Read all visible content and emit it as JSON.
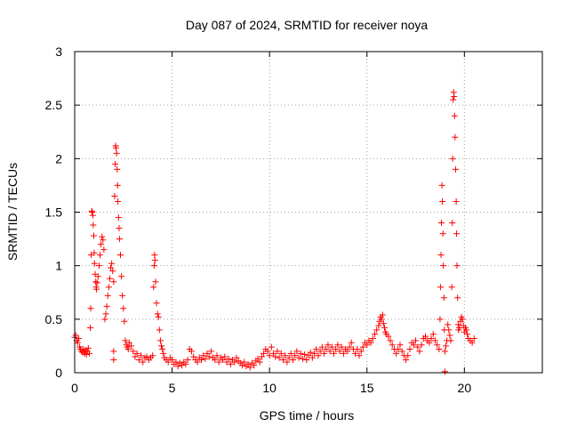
{
  "chart_data": {
    "type": "scatter",
    "title": "Day 087 of 2024, SRMTID for receiver noya",
    "xlabel": "GPS time / hours",
    "ylabel": "SRMTID / TECUs",
    "xlim": [
      0,
      24
    ],
    "ylim": [
      0,
      3
    ],
    "xticks": [
      0,
      5,
      10,
      15,
      20
    ],
    "xtick_labels": [
      "0",
      "5",
      "10",
      "15",
      "20"
    ],
    "yticks": [
      0,
      0.5,
      1,
      1.5,
      2,
      2.5,
      3
    ],
    "ytick_labels": [
      "0",
      "0.5",
      "1",
      "1.5",
      "2",
      "2.5",
      "3"
    ],
    "grid": true,
    "marker": "+",
    "color": "#ff0000",
    "series": [
      {
        "name": "SRMTID",
        "points": [
          [
            0.0,
            0.33
          ],
          [
            0.05,
            0.35
          ],
          [
            0.1,
            0.3
          ],
          [
            0.15,
            0.28
          ],
          [
            0.2,
            0.32
          ],
          [
            0.25,
            0.24
          ],
          [
            0.3,
            0.22
          ],
          [
            0.35,
            0.2
          ],
          [
            0.4,
            0.19
          ],
          [
            0.45,
            0.22
          ],
          [
            0.5,
            0.18
          ],
          [
            0.55,
            0.21
          ],
          [
            0.6,
            0.17
          ],
          [
            0.65,
            0.2
          ],
          [
            0.7,
            0.23
          ],
          [
            0.75,
            0.18
          ],
          [
            0.8,
            0.42
          ],
          [
            0.82,
            0.6
          ],
          [
            0.85,
            1.1
          ],
          [
            0.88,
            1.51
          ],
          [
            0.9,
            1.5
          ],
          [
            0.93,
            1.47
          ],
          [
            0.95,
            1.38
          ],
          [
            0.98,
            1.28
          ],
          [
            1.0,
            1.12
          ],
          [
            1.02,
            1.02
          ],
          [
            1.05,
            0.92
          ],
          [
            1.08,
            0.85
          ],
          [
            1.1,
            0.8
          ],
          [
            1.12,
            0.78
          ],
          [
            1.15,
            0.84
          ],
          [
            1.2,
            0.9
          ],
          [
            1.25,
            1.0
          ],
          [
            1.3,
            1.1
          ],
          [
            1.35,
            1.2
          ],
          [
            1.4,
            1.27
          ],
          [
            1.45,
            1.24
          ],
          [
            1.5,
            1.15
          ],
          [
            1.55,
            0.5
          ],
          [
            1.6,
            0.55
          ],
          [
            1.65,
            0.62
          ],
          [
            1.7,
            0.72
          ],
          [
            1.75,
            0.8
          ],
          [
            1.8,
            0.88
          ],
          [
            1.85,
            0.98
          ],
          [
            1.9,
            1.02
          ],
          [
            1.95,
            0.95
          ],
          [
            2.0,
            0.85
          ],
          [
            2.0,
            0.12
          ],
          [
            2.0,
            0.2
          ],
          [
            2.05,
            1.65
          ],
          [
            2.08,
            1.95
          ],
          [
            2.1,
            2.12
          ],
          [
            2.12,
            2.1
          ],
          [
            2.15,
            2.05
          ],
          [
            2.18,
            1.9
          ],
          [
            2.2,
            1.75
          ],
          [
            2.22,
            1.6
          ],
          [
            2.25,
            1.45
          ],
          [
            2.28,
            1.35
          ],
          [
            2.3,
            1.25
          ],
          [
            2.35,
            1.1
          ],
          [
            2.4,
            0.9
          ],
          [
            2.45,
            0.72
          ],
          [
            2.5,
            0.6
          ],
          [
            2.55,
            0.48
          ],
          [
            2.6,
            0.3
          ],
          [
            2.65,
            0.26
          ],
          [
            2.7,
            0.24
          ],
          [
            2.75,
            0.22
          ],
          [
            2.8,
            0.28
          ],
          [
            2.9,
            0.25
          ],
          [
            3.0,
            0.2
          ],
          [
            3.1,
            0.15
          ],
          [
            3.2,
            0.18
          ],
          [
            3.3,
            0.12
          ],
          [
            3.4,
            0.16
          ],
          [
            3.5,
            0.1
          ],
          [
            3.6,
            0.14
          ],
          [
            3.7,
            0.15
          ],
          [
            3.8,
            0.12
          ],
          [
            3.9,
            0.14
          ],
          [
            4.0,
            0.16
          ],
          [
            4.05,
            0.8
          ],
          [
            4.08,
            1.0
          ],
          [
            4.1,
            1.1
          ],
          [
            4.12,
            1.05
          ],
          [
            4.15,
            0.85
          ],
          [
            4.2,
            0.65
          ],
          [
            4.25,
            0.55
          ],
          [
            4.3,
            0.52
          ],
          [
            4.35,
            0.4
          ],
          [
            4.4,
            0.3
          ],
          [
            4.45,
            0.25
          ],
          [
            4.5,
            0.22
          ],
          [
            4.55,
            0.18
          ],
          [
            4.6,
            0.14
          ],
          [
            4.7,
            0.12
          ],
          [
            4.8,
            0.1
          ],
          [
            4.9,
            0.14
          ],
          [
            5.0,
            0.12
          ],
          [
            5.1,
            0.08
          ],
          [
            5.2,
            0.1
          ],
          [
            5.3,
            0.06
          ],
          [
            5.4,
            0.09
          ],
          [
            5.5,
            0.07
          ],
          [
            5.6,
            0.1
          ],
          [
            5.7,
            0.08
          ],
          [
            5.8,
            0.12
          ],
          [
            5.9,
            0.22
          ],
          [
            6.0,
            0.2
          ],
          [
            6.1,
            0.15
          ],
          [
            6.2,
            0.12
          ],
          [
            6.3,
            0.1
          ],
          [
            6.4,
            0.14
          ],
          [
            6.5,
            0.12
          ],
          [
            6.6,
            0.16
          ],
          [
            6.7,
            0.13
          ],
          [
            6.8,
            0.18
          ],
          [
            6.9,
            0.15
          ],
          [
            7.0,
            0.2
          ],
          [
            7.1,
            0.14
          ],
          [
            7.2,
            0.12
          ],
          [
            7.3,
            0.16
          ],
          [
            7.4,
            0.1
          ],
          [
            7.5,
            0.14
          ],
          [
            7.6,
            0.12
          ],
          [
            7.7,
            0.15
          ],
          [
            7.8,
            0.1
          ],
          [
            7.9,
            0.13
          ],
          [
            8.0,
            0.08
          ],
          [
            8.1,
            0.12
          ],
          [
            8.2,
            0.1
          ],
          [
            8.3,
            0.14
          ],
          [
            8.4,
            0.11
          ],
          [
            8.5,
            0.09
          ],
          [
            8.6,
            0.07
          ],
          [
            8.7,
            0.1
          ],
          [
            8.8,
            0.06
          ],
          [
            8.9,
            0.08
          ],
          [
            9.0,
            0.05
          ],
          [
            9.1,
            0.09
          ],
          [
            9.2,
            0.07
          ],
          [
            9.3,
            0.11
          ],
          [
            9.4,
            0.13
          ],
          [
            9.5,
            0.1
          ],
          [
            9.6,
            0.15
          ],
          [
            9.7,
            0.18
          ],
          [
            9.8,
            0.22
          ],
          [
            9.9,
            0.2
          ],
          [
            10.0,
            0.16
          ],
          [
            10.1,
            0.24
          ],
          [
            10.2,
            0.18
          ],
          [
            10.3,
            0.15
          ],
          [
            10.4,
            0.2
          ],
          [
            10.5,
            0.14
          ],
          [
            10.6,
            0.18
          ],
          [
            10.7,
            0.12
          ],
          [
            10.8,
            0.16
          ],
          [
            10.9,
            0.1
          ],
          [
            11.0,
            0.14
          ],
          [
            11.1,
            0.18
          ],
          [
            11.2,
            0.12
          ],
          [
            11.3,
            0.16
          ],
          [
            11.4,
            0.2
          ],
          [
            11.5,
            0.14
          ],
          [
            11.6,
            0.18
          ],
          [
            11.7,
            0.13
          ],
          [
            11.8,
            0.17
          ],
          [
            11.9,
            0.12
          ],
          [
            12.0,
            0.16
          ],
          [
            12.1,
            0.19
          ],
          [
            12.2,
            0.14
          ],
          [
            12.3,
            0.18
          ],
          [
            12.4,
            0.22
          ],
          [
            12.5,
            0.16
          ],
          [
            12.6,
            0.2
          ],
          [
            12.7,
            0.24
          ],
          [
            12.8,
            0.18
          ],
          [
            12.9,
            0.22
          ],
          [
            13.0,
            0.26
          ],
          [
            13.1,
            0.2
          ],
          [
            13.2,
            0.24
          ],
          [
            13.3,
            0.18
          ],
          [
            13.4,
            0.22
          ],
          [
            13.5,
            0.26
          ],
          [
            13.6,
            0.2
          ],
          [
            13.7,
            0.24
          ],
          [
            13.8,
            0.18
          ],
          [
            13.9,
            0.22
          ],
          [
            14.0,
            0.2
          ],
          [
            14.1,
            0.24
          ],
          [
            14.2,
            0.28
          ],
          [
            14.3,
            0.22
          ],
          [
            14.4,
            0.18
          ],
          [
            14.5,
            0.22
          ],
          [
            14.6,
            0.16
          ],
          [
            14.7,
            0.2
          ],
          [
            14.8,
            0.24
          ],
          [
            14.9,
            0.28
          ],
          [
            15.0,
            0.26
          ],
          [
            15.1,
            0.3
          ],
          [
            15.2,
            0.28
          ],
          [
            15.3,
            0.32
          ],
          [
            15.4,
            0.36
          ],
          [
            15.5,
            0.4
          ],
          [
            15.6,
            0.44
          ],
          [
            15.65,
            0.48
          ],
          [
            15.7,
            0.52
          ],
          [
            15.75,
            0.5
          ],
          [
            15.8,
            0.54
          ],
          [
            15.85,
            0.46
          ],
          [
            15.9,
            0.42
          ],
          [
            15.95,
            0.38
          ],
          [
            16.0,
            0.36
          ],
          [
            16.1,
            0.34
          ],
          [
            16.2,
            0.3
          ],
          [
            16.3,
            0.26
          ],
          [
            16.4,
            0.22
          ],
          [
            16.5,
            0.18
          ],
          [
            16.6,
            0.22
          ],
          [
            16.7,
            0.26
          ],
          [
            16.8,
            0.2
          ],
          [
            16.9,
            0.16
          ],
          [
            17.0,
            0.12
          ],
          [
            17.1,
            0.16
          ],
          [
            17.2,
            0.22
          ],
          [
            17.3,
            0.28
          ],
          [
            17.4,
            0.26
          ],
          [
            17.5,
            0.3
          ],
          [
            17.6,
            0.24
          ],
          [
            17.7,
            0.2
          ],
          [
            17.8,
            0.26
          ],
          [
            17.9,
            0.32
          ],
          [
            18.0,
            0.34
          ],
          [
            18.1,
            0.3
          ],
          [
            18.2,
            0.28
          ],
          [
            18.3,
            0.32
          ],
          [
            18.4,
            0.36
          ],
          [
            18.5,
            0.3
          ],
          [
            18.6,
            0.26
          ],
          [
            18.7,
            0.22
          ],
          [
            18.75,
            0.5
          ],
          [
            18.78,
            0.8
          ],
          [
            18.8,
            1.1
          ],
          [
            18.82,
            1.4
          ],
          [
            18.85,
            1.75
          ],
          [
            18.87,
            1.6
          ],
          [
            18.9,
            1.3
          ],
          [
            18.92,
            1.0
          ],
          [
            18.95,
            0.7
          ],
          [
            18.97,
            0.4
          ],
          [
            19.0,
            0.2
          ],
          [
            19.0,
            0.01
          ],
          [
            19.05,
            0.25
          ],
          [
            19.1,
            0.3
          ],
          [
            19.15,
            0.45
          ],
          [
            19.2,
            0.4
          ],
          [
            19.25,
            0.35
          ],
          [
            19.3,
            0.3
          ],
          [
            19.35,
            0.8
          ],
          [
            19.38,
            1.4
          ],
          [
            19.4,
            2.0
          ],
          [
            19.42,
            2.55
          ],
          [
            19.45,
            2.62
          ],
          [
            19.47,
            2.58
          ],
          [
            19.5,
            2.4
          ],
          [
            19.52,
            2.2
          ],
          [
            19.55,
            1.9
          ],
          [
            19.58,
            1.6
          ],
          [
            19.6,
            1.3
          ],
          [
            19.62,
            1.0
          ],
          [
            19.65,
            0.7
          ],
          [
            19.68,
            0.45
          ],
          [
            19.7,
            0.4
          ],
          [
            19.75,
            0.42
          ],
          [
            19.8,
            0.48
          ],
          [
            19.85,
            0.52
          ],
          [
            19.9,
            0.5
          ],
          [
            19.95,
            0.44
          ],
          [
            20.0,
            0.38
          ],
          [
            20.05,
            0.42
          ],
          [
            20.1,
            0.4
          ],
          [
            20.15,
            0.36
          ],
          [
            20.2,
            0.32
          ],
          [
            20.3,
            0.3
          ],
          [
            20.4,
            0.28
          ],
          [
            20.5,
            0.32
          ]
        ]
      }
    ]
  }
}
